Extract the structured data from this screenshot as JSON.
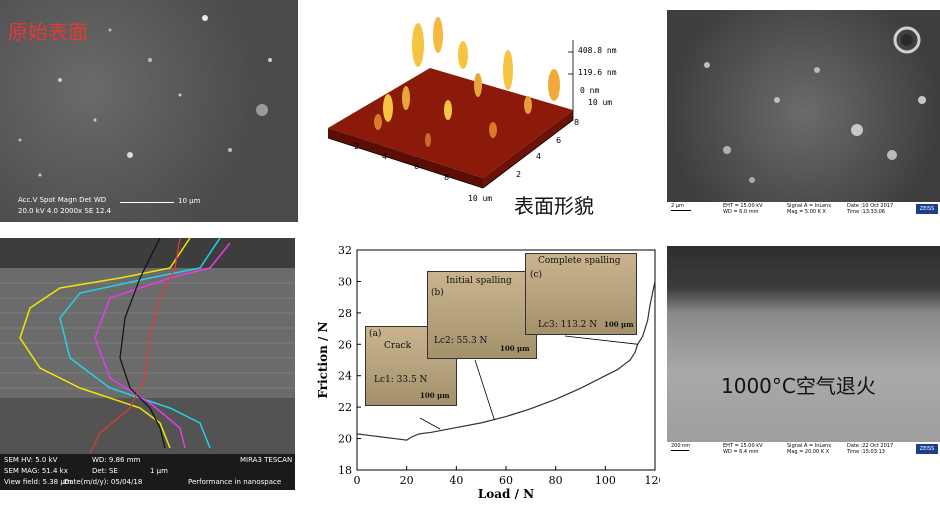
{
  "panels": {
    "sem_original": {
      "title": "原始表面",
      "info_line1": "Acc.V  Spot Magn    Det  WD",
      "info_line2": "20.0 kV 4.0   2000x    SE   12.4",
      "scale": "10 μm"
    },
    "afm": {
      "caption": "表面形貌",
      "z_top": "408.8 nm",
      "z_mid": "119.6 nm",
      "z_base": "0 nm",
      "x_end": "10 um",
      "y_end": "10 um",
      "ticks_right": [
        "8",
        "6",
        "4",
        "2"
      ],
      "ticks_left": [
        "2",
        "4",
        "6",
        "8"
      ],
      "colors": {
        "peak": "#f5c542",
        "base": "#8b1a0a"
      }
    },
    "sem_zeiss_top": {
      "scale": "2 μm",
      "eht": "EHT = 15.00 kV",
      "wd": "WD = 6.0 mm",
      "signal": "Signal A = InLens",
      "mag": "Mag = 5.00 K X",
      "date": "Date :10 Oct 2017",
      "time": "Time :13:33:06",
      "logo": "ZEISS"
    },
    "sem_cross": {
      "row1": [
        "SEM HV: 5.0 kV",
        "WD: 9.86 mm",
        "MIRA3 TESCAN"
      ],
      "row2": [
        "SEM MAG: 51.4 kx",
        "Det: SE",
        "1 μm"
      ],
      "row3": [
        "View field: 5.38 μm",
        "Date(m/d/y): 05/04/18",
        "Performance in nanospace"
      ],
      "colors": {
        "yellow": "#f2e600",
        "cyan": "#22d3e6",
        "magenta": "#e83be8",
        "black": "#111111",
        "red": "#e53935"
      }
    },
    "friction": {
      "photos": [
        {
          "tag": "(a)",
          "label": "Crack",
          "value": "Lc1: 33.5 N",
          "scale": "100 μm"
        },
        {
          "tag": "(b)",
          "label": "Initial spalling",
          "value": "Lc2: 55.3 N",
          "scale": "100 μm"
        },
        {
          "tag": "(c)",
          "label": "Complete spalling",
          "value": "Lc3: 113.2 N",
          "scale": "100 μm"
        }
      ]
    },
    "sem_zeiss_bottom": {
      "caption": "1000°C空气退火",
      "scale": "200 nm",
      "eht": "EHT = 15.00 kV",
      "wd": "WD = 6.4 mm",
      "signal": "Signal A = InLens",
      "mag": "Mag = 20.00 K X",
      "date": "Date :22 Oct 2017",
      "time": "Time :15:03:13",
      "logo": "ZEISS"
    }
  },
  "chart_data": {
    "type": "line",
    "xlabel": "Load / N",
    "ylabel": "Friction / N",
    "xlim": [
      0,
      120
    ],
    "ylim": [
      18,
      32
    ],
    "xticks": [
      0,
      20,
      40,
      60,
      80,
      100,
      120
    ],
    "yticks": [
      18,
      20,
      22,
      24,
      26,
      28,
      30,
      32
    ],
    "x": [
      0,
      5,
      10,
      15,
      20,
      22,
      25,
      30,
      40,
      50,
      60,
      70,
      80,
      90,
      100,
      105,
      110,
      112,
      113,
      115,
      117,
      118,
      120
    ],
    "y": [
      20.3,
      20.2,
      20.1,
      20.0,
      19.9,
      20.1,
      20.3,
      20.4,
      20.7,
      21.0,
      21.4,
      21.9,
      22.5,
      23.2,
      24.0,
      24.4,
      25.0,
      25.5,
      26.0,
      26.5,
      27.5,
      28.5,
      30.0
    ],
    "grid": false,
    "color": "#333333"
  }
}
